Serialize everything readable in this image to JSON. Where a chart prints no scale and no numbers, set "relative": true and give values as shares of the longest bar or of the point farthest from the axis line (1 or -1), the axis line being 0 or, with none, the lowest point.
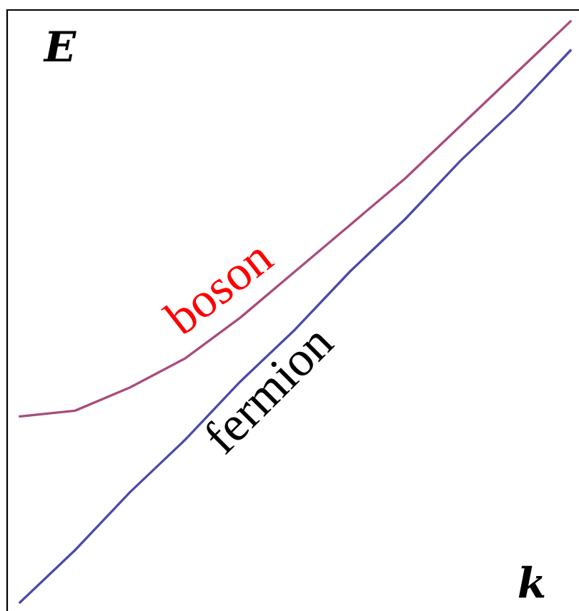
{
  "chart_data": {
    "type": "line",
    "relative": true,
    "xlabel": "k",
    "ylabel": "E",
    "categories": [
      null,
      null,
      null,
      null,
      null,
      null,
      null,
      null,
      null,
      null,
      null
    ],
    "legend": false,
    "marker": "none",
    "line_style": "solid",
    "series": [
      {
        "name": "boson",
        "color": "#a94c7c",
        "values": [
          0.32,
          0.33,
          0.37,
          0.42,
          0.49,
          0.57,
          0.65,
          0.73,
          0.82,
          0.91,
          1.0
        ]
      },
      {
        "name": "fermion",
        "color": "#4a4aa8",
        "values": [
          0,
          0.09,
          0.19,
          0.28,
          0.38,
          0.47,
          0.57,
          0.66,
          0.76,
          0.85,
          0.95
        ]
      }
    ]
  }
}
